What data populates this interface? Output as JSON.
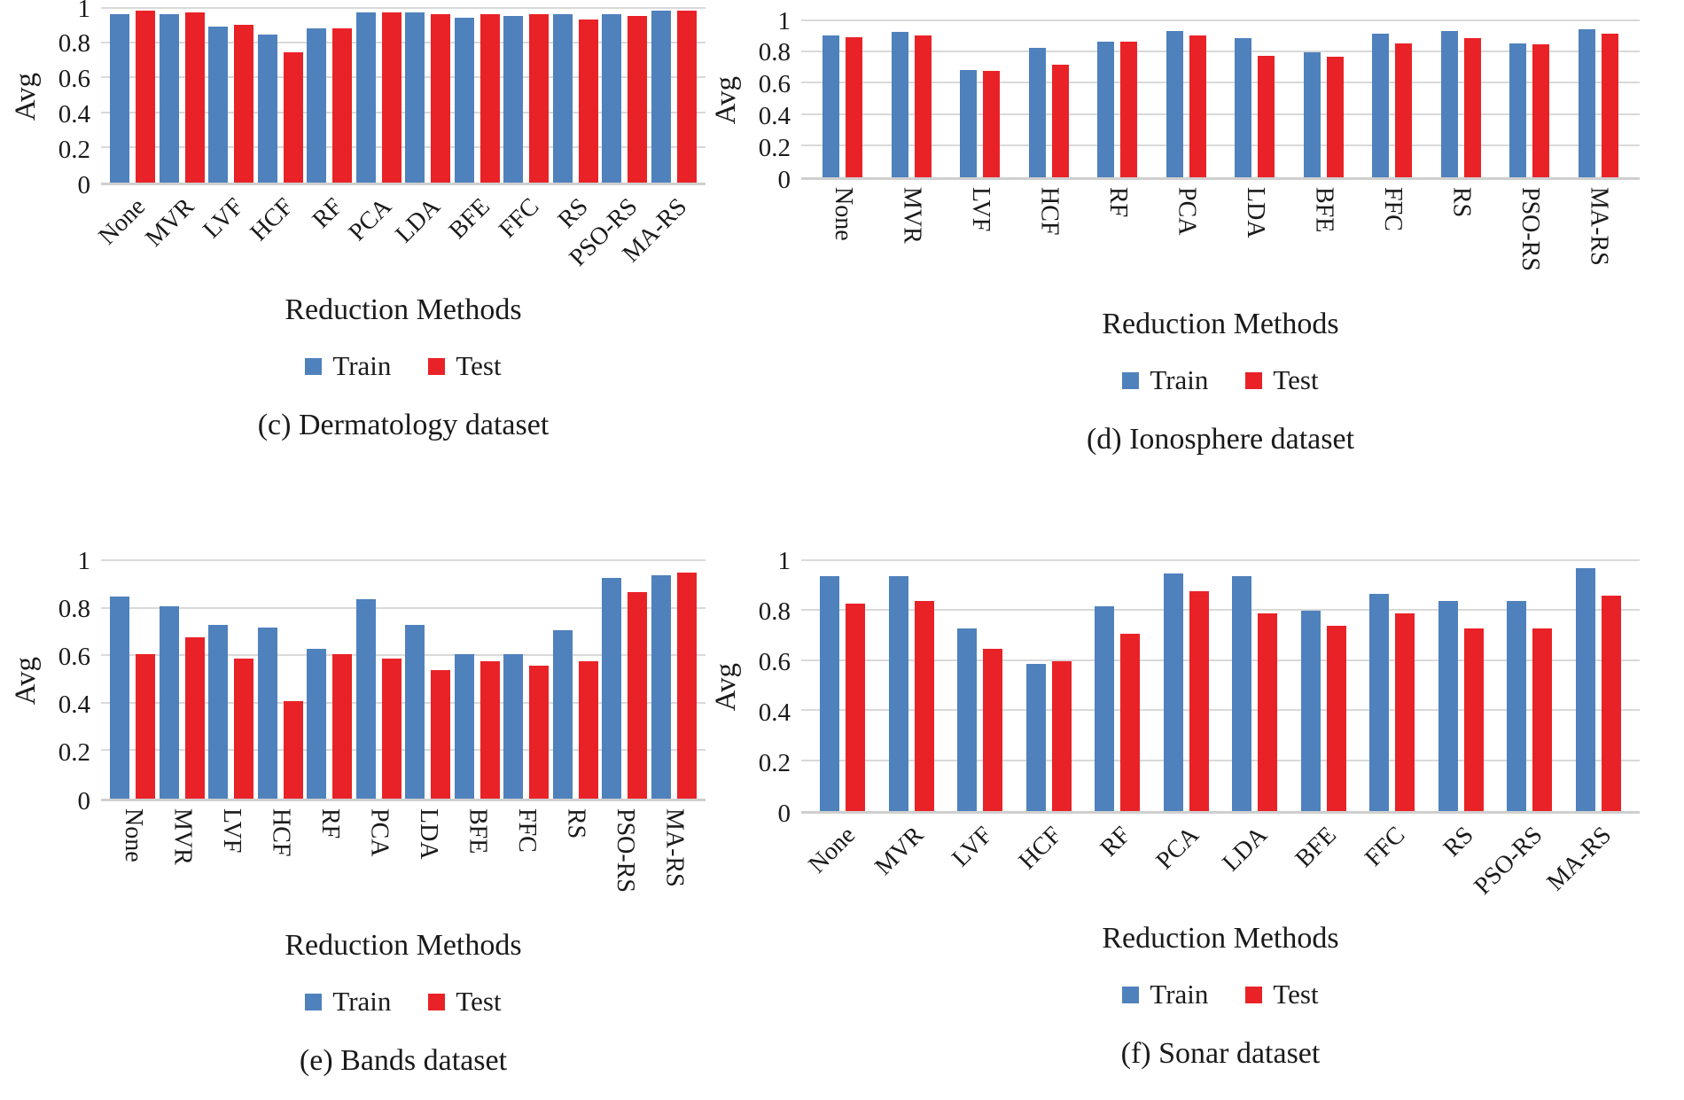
{
  "figure": {
    "background": "#ffffff",
    "text_color": "#1a1a1a"
  },
  "colors": {
    "train": "#4F81BD",
    "test": "#E92227",
    "gridline": "#D9D9D9",
    "axis_line": "#CFCFCF"
  },
  "legend": {
    "train_label": "Train",
    "test_label": "Test"
  },
  "chart_data": [
    {
      "type": "bar",
      "panel_label": "(c)",
      "caption": "(c) Dermatology dataset",
      "xlabel": "Reduction Methods",
      "ylabel": "Avg",
      "ylim": [
        0,
        1
      ],
      "y_ticks": [
        1,
        0.8,
        0.6,
        0.4,
        0.2,
        0
      ],
      "grid": true,
      "legend_position": "below",
      "x_tick_rotation": 45,
      "categories": [
        "None",
        "MVR",
        "LVF",
        "HCF",
        "RF",
        "PCA",
        "LDA",
        "BFE",
        "FFC",
        "RS",
        "PSO-RS",
        "MA-RS"
      ],
      "series": [
        {
          "name": "Train",
          "color": "#4F81BD",
          "values": [
            0.97,
            0.97,
            0.9,
            0.85,
            0.89,
            0.98,
            0.98,
            0.95,
            0.96,
            0.97,
            0.97,
            0.99
          ]
        },
        {
          "name": "Test",
          "color": "#E92227",
          "values": [
            0.99,
            0.98,
            0.91,
            0.75,
            0.89,
            0.98,
            0.97,
            0.97,
            0.97,
            0.94,
            0.96,
            0.99
          ]
        }
      ]
    },
    {
      "type": "bar",
      "panel_label": "(d)",
      "caption": "(d) Ionosphere dataset",
      "xlabel": "Reduction Methods",
      "ylabel": "Avg",
      "ylim": [
        0,
        1
      ],
      "y_ticks": [
        1,
        0.8,
        0.6,
        0.4,
        0.2,
        0
      ],
      "grid": true,
      "legend_position": "below",
      "x_tick_rotation": 90,
      "categories": [
        "None",
        "MVR",
        "LVF",
        "HCF",
        "RF",
        "PCA",
        "LDA",
        "BFE",
        "FFC",
        "RS",
        "PSO-RS",
        "MA-RS"
      ],
      "series": [
        {
          "name": "Train",
          "color": "#4F81BD",
          "values": [
            0.91,
            0.93,
            0.69,
            0.83,
            0.87,
            0.94,
            0.89,
            0.8,
            0.92,
            0.94,
            0.86,
            0.95
          ]
        },
        {
          "name": "Test",
          "color": "#E92227",
          "values": [
            0.9,
            0.91,
            0.68,
            0.72,
            0.87,
            0.91,
            0.78,
            0.77,
            0.86,
            0.89,
            0.85,
            0.92
          ]
        }
      ]
    },
    {
      "type": "bar",
      "panel_label": "(e)",
      "caption": "(e) Bands dataset",
      "xlabel": "Reduction Methods",
      "ylabel": "Avg",
      "ylim": [
        0,
        1
      ],
      "y_ticks": [
        1,
        0.8,
        0.6,
        0.4,
        0.2,
        0
      ],
      "grid": true,
      "legend_position": "below",
      "x_tick_rotation": 90,
      "categories": [
        "None",
        "MVR",
        "LVF",
        "HCF",
        "RF",
        "PCA",
        "LDA",
        "BFE",
        "FFC",
        "RS",
        "PSO-RS",
        "MA-RS"
      ],
      "series": [
        {
          "name": "Train",
          "color": "#4F81BD",
          "values": [
            0.85,
            0.81,
            0.73,
            0.72,
            0.63,
            0.84,
            0.73,
            0.61,
            0.61,
            0.71,
            0.93,
            0.94
          ]
        },
        {
          "name": "Test",
          "color": "#E92227",
          "values": [
            0.61,
            0.68,
            0.59,
            0.41,
            0.61,
            0.59,
            0.54,
            0.58,
            0.56,
            0.58,
            0.87,
            0.95
          ]
        }
      ]
    },
    {
      "type": "bar",
      "panel_label": "(f)",
      "caption": "(f) Sonar dataset",
      "xlabel": "Reduction Methods",
      "ylabel": "Avg",
      "ylim": [
        0,
        1
      ],
      "y_ticks": [
        1,
        0.8,
        0.6,
        0.4,
        0.2,
        0
      ],
      "grid": true,
      "legend_position": "below",
      "x_tick_rotation": 45,
      "categories": [
        "None",
        "MVR",
        "LVF",
        "HCF",
        "RF",
        "PCA",
        "LDA",
        "BFE",
        "FFC",
        "RS",
        "PSO-RS",
        "MA-RS"
      ],
      "series": [
        {
          "name": "Train",
          "color": "#4F81BD",
          "values": [
            0.94,
            0.94,
            0.73,
            0.59,
            0.82,
            0.95,
            0.94,
            0.8,
            0.87,
            0.84,
            0.84,
            0.97
          ]
        },
        {
          "name": "Test",
          "color": "#E92227",
          "values": [
            0.83,
            0.84,
            0.65,
            0.6,
            0.71,
            0.88,
            0.79,
            0.74,
            0.79,
            0.73,
            0.73,
            0.86
          ]
        }
      ]
    }
  ]
}
